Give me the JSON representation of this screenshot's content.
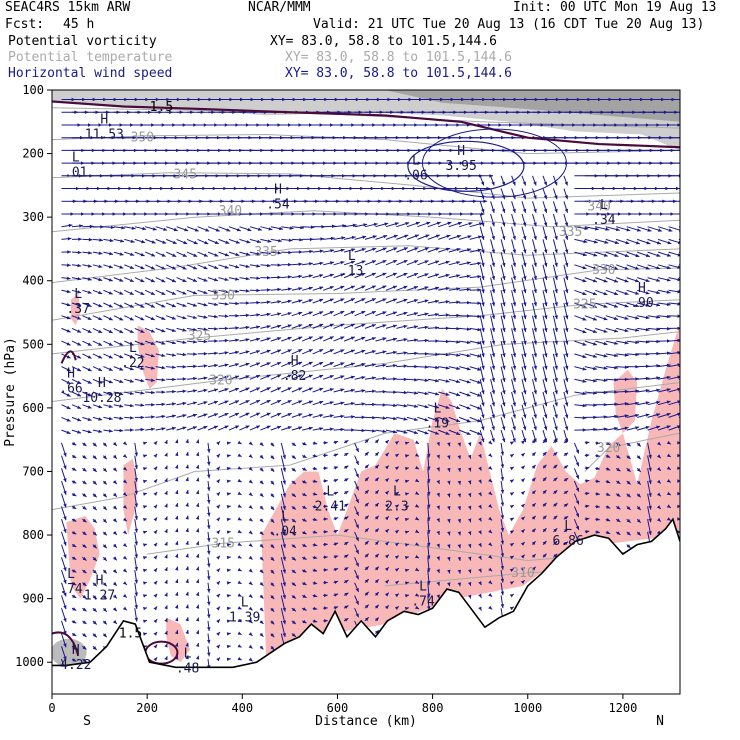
{
  "header": {
    "model": "SEAC4RS 15km ARW",
    "center": "NCAR/MMM",
    "init": "Init: 00 UTC Mon 19 Aug 13",
    "fcst_label": "Fcst:",
    "fcst_value": "45 h",
    "valid": "Valid: 21 UTC Tue 20 Aug 13 (16 CDT Tue 20 Aug 13)"
  },
  "fields": [
    {
      "name": "Potential vorticity",
      "xy": "XY=  83.0, 58.8 to 101.5,144.6",
      "color": "#000000"
    },
    {
      "name": "Potential temperature",
      "xy": "XY=  83.0, 58.8 to 101.5,144.6",
      "color": "#aaaaaa"
    },
    {
      "name": "Horizontal wind speed",
      "xy": "XY=  83.0, 58.8 to 101.5,144.6",
      "color": "#1a1a8c"
    }
  ],
  "colors": {
    "pv_shade": "#f8b8b8",
    "pv_contour": "#4a0a3a",
    "theta": "#aaaaaa",
    "wind": "#1a1a8c",
    "terrain": "#000000",
    "strat_shade": "#888888"
  },
  "chart_data": {
    "type": "cross-section",
    "xlabel": "Distance (km)",
    "ylabel": "Pressure (hPa)",
    "xlim": [
      0,
      1320
    ],
    "ylim": [
      1050,
      100
    ],
    "x_ticks": [
      0,
      200,
      400,
      600,
      800,
      1000,
      1200
    ],
    "y_ticks": [
      100,
      200,
      300,
      400,
      500,
      600,
      700,
      800,
      900,
      1000
    ],
    "end_labels": {
      "left": "S",
      "right": "N"
    },
    "theta_contours": [
      {
        "label": "350",
        "x": 190,
        "p": 175
      },
      {
        "label": "345",
        "x": 280,
        "p": 233
      },
      {
        "label": "340",
        "x": 375,
        "p": 290
      },
      {
        "label": "335",
        "x": 450,
        "p": 355
      },
      {
        "label": "330",
        "x": 360,
        "p": 423
      },
      {
        "label": "325",
        "x": 310,
        "p": 487
      },
      {
        "label": "320",
        "x": 355,
        "p": 557
      },
      {
        "label": "330",
        "x": 1160,
        "p": 383
      },
      {
        "label": "325",
        "x": 1120,
        "p": 437
      },
      {
        "label": "335",
        "x": 1090,
        "p": 323
      },
      {
        "label": "340",
        "x": 1150,
        "p": 283
      },
      {
        "label": "320",
        "x": 1170,
        "p": 663
      },
      {
        "label": "315",
        "x": 360,
        "p": 813
      },
      {
        "label": "310",
        "x": 990,
        "p": 860
      }
    ],
    "pv_labels": [
      {
        "label": "1.5",
        "x": 230,
        "p": 127
      },
      {
        "label": "1.5",
        "x": 165,
        "p": 955
      }
    ],
    "extrema": [
      {
        "kind": "H",
        "value": "11.53",
        "x": 110,
        "p": 165
      },
      {
        "kind": "L",
        "value": ".01",
        "x": 50,
        "p": 225
      },
      {
        "kind": "H",
        "value": "3.95",
        "x": 860,
        "p": 215
      },
      {
        "kind": "L",
        "value": ".06",
        "x": 765,
        "p": 230
      },
      {
        "kind": "H",
        "value": ".54",
        "x": 475,
        "p": 275
      },
      {
        "kind": "L",
        "value": ".34",
        "x": 1160,
        "p": 300
      },
      {
        "kind": "L",
        "value": ".13",
        "x": 630,
        "p": 380
      },
      {
        "kind": "L",
        "value": ".37",
        "x": 55,
        "p": 440
      },
      {
        "kind": "H",
        "value": ".90",
        "x": 1240,
        "p": 430
      },
      {
        "kind": "L",
        "value": ".22",
        "x": 170,
        "p": 525
      },
      {
        "kind": "H",
        "value": ".66",
        "x": 40,
        "p": 565
      },
      {
        "kind": "H",
        "value": ".82",
        "x": 510,
        "p": 545
      },
      {
        "kind": "H",
        "value": "10.28",
        "x": 105,
        "p": 580
      },
      {
        "kind": "L",
        "value": ".19",
        "x": 810,
        "p": 620
      },
      {
        "kind": "L",
        "value": "2.41",
        "x": 585,
        "p": 750
      },
      {
        "kind": "L",
        "value": "2.3",
        "x": 725,
        "p": 750
      },
      {
        "kind": "L",
        "value": ".04",
        "x": 490,
        "p": 790
      },
      {
        "kind": "L",
        "value": "6.86",
        "x": 1085,
        "p": 805
      },
      {
        "kind": "L",
        "value": ".74",
        "x": 40,
        "p": 880
      },
      {
        "kind": "H",
        "value": "1.27",
        "x": 100,
        "p": 890
      },
      {
        "kind": "L",
        "value": "1.39",
        "x": 405,
        "p": 925
      },
      {
        "kind": "L",
        "value": ".74",
        "x": 780,
        "p": 900
      },
      {
        "kind": "H",
        "value": "4.22",
        "x": 50,
        "p": 1000
      },
      {
        "kind": "L",
        "value": ".48",
        "x": 285,
        "p": 1005
      }
    ]
  }
}
